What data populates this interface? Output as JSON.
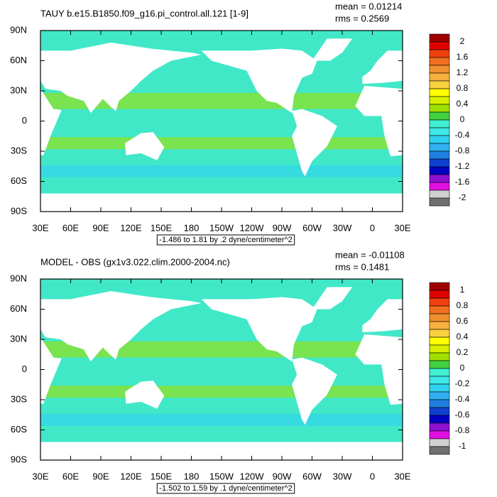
{
  "chart_data": [
    {
      "type": "map",
      "title": "TAUY b.e15.B1850.f09_g16.pi_control.all.121 [1-9]",
      "mean": "mean = 0.01214",
      "rms": "rms = 0.2569",
      "subtitle": "-1.486 to 1.81 by .2 dyne/centimeter^2",
      "xlim": [
        30,
        390
      ],
      "ylim": [
        -90,
        90
      ],
      "xticks": [
        {
          "value": 30,
          "label": "30E"
        },
        {
          "value": 60,
          "label": "60E"
        },
        {
          "value": 90,
          "label": "90E"
        },
        {
          "value": 120,
          "label": "120E"
        },
        {
          "value": 150,
          "label": "150E"
        },
        {
          "value": 180,
          "label": "180"
        },
        {
          "value": 210,
          "label": "150W"
        },
        {
          "value": 240,
          "label": "120W"
        },
        {
          "value": 270,
          "label": "90W"
        },
        {
          "value": 300,
          "label": "60W"
        },
        {
          "value": 330,
          "label": "30W"
        },
        {
          "value": 360,
          "label": "0"
        },
        {
          "value": 390,
          "label": "30E"
        }
      ],
      "yticks": [
        {
          "value": 90,
          "label": "90N"
        },
        {
          "value": 60,
          "label": "60N"
        },
        {
          "value": 30,
          "label": "30N"
        },
        {
          "value": 0,
          "label": "0"
        },
        {
          "value": -30,
          "label": "30S"
        },
        {
          "value": -60,
          "label": "60S"
        },
        {
          "value": -90,
          "label": "90S"
        }
      ],
      "colorbar": {
        "colors": [
          "#a00000",
          "#e00000",
          "#f04010",
          "#f07020",
          "#f09030",
          "#f8b040",
          "#f8d040",
          "#ffff00",
          "#d8f000",
          "#a0e000",
          "#40d040",
          "#40f0d0",
          "#40e8e8",
          "#30d0f0",
          "#30b0f0",
          "#2080e0",
          "#1040d0",
          "#0000c0",
          "#9010d0",
          "#e010e0",
          "#d0d0d0",
          "#707070"
        ],
        "labels": [
          2,
          1.6,
          1.2,
          0.8,
          0.4,
          0,
          -0.4,
          -0.8,
          -1.2,
          -1.6,
          -2
        ]
      }
    },
    {
      "type": "map",
      "title": "MODEL - OBS (gx1v3.022.clim.2000-2004.nc)",
      "mean": "mean = -0.01108",
      "rms": "rms = 0.1481",
      "subtitle": "-1.502 to 1.59 by .1 dyne/centimeter^2",
      "xlim": [
        30,
        390
      ],
      "ylim": [
        -90,
        90
      ],
      "xticks": [
        {
          "value": 30,
          "label": "30E"
        },
        {
          "value": 60,
          "label": "60E"
        },
        {
          "value": 90,
          "label": "90E"
        },
        {
          "value": 120,
          "label": "120E"
        },
        {
          "value": 150,
          "label": "150E"
        },
        {
          "value": 180,
          "label": "180"
        },
        {
          "value": 210,
          "label": "150W"
        },
        {
          "value": 240,
          "label": "120W"
        },
        {
          "value": 270,
          "label": "90W"
        },
        {
          "value": 300,
          "label": "60W"
        },
        {
          "value": 330,
          "label": "30W"
        },
        {
          "value": 360,
          "label": "0"
        },
        {
          "value": 390,
          "label": "30E"
        }
      ],
      "yticks": [
        {
          "value": 90,
          "label": "90N"
        },
        {
          "value": 60,
          "label": "60N"
        },
        {
          "value": 30,
          "label": "30N"
        },
        {
          "value": 0,
          "label": "0"
        },
        {
          "value": -30,
          "label": "30S"
        },
        {
          "value": -60,
          "label": "60S"
        },
        {
          "value": -90,
          "label": "90S"
        }
      ],
      "colorbar": {
        "colors": [
          "#a00000",
          "#e00000",
          "#f04010",
          "#f07020",
          "#f09030",
          "#f8b040",
          "#f8d040",
          "#ffff00",
          "#d8f000",
          "#a0e000",
          "#40d040",
          "#40f0d0",
          "#40e8e8",
          "#30d0f0",
          "#30b0f0",
          "#2080e0",
          "#1040d0",
          "#0000c0",
          "#9010d0",
          "#e010e0",
          "#d0d0d0",
          "#707070"
        ],
        "labels": [
          1,
          0.8,
          0.6,
          0.4,
          0.2,
          0,
          -0.2,
          -0.4,
          -0.6,
          -0.8,
          -1
        ]
      }
    }
  ]
}
